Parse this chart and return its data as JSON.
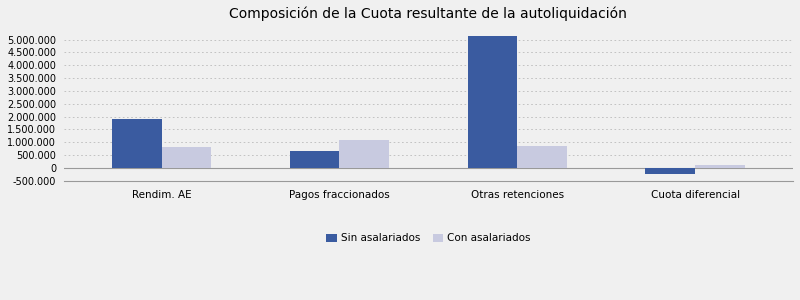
{
  "title": "Composición de la Cuota resultante de la autoliquidación",
  "categories": [
    "Rendim. AE",
    "Pagos fraccionados",
    "Otras retenciones",
    "Cuota diferencial"
  ],
  "sin_asalariados": [
    1900000,
    670000,
    5150000,
    -220000
  ],
  "con_asalariados": [
    800000,
    1080000,
    840000,
    120000
  ],
  "bar_color_sin": "#3A5BA0",
  "bar_color_con": "#C8CAE0",
  "legend_sin": "Sin asalariados",
  "legend_con": "Con asalariados",
  "ylim": [
    -500000,
    5500000
  ],
  "yticks": [
    -500000,
    0,
    500000,
    1000000,
    1500000,
    2000000,
    2500000,
    3000000,
    3500000,
    4000000,
    4500000,
    5000000
  ],
  "background_color": "#f0f0f0",
  "plot_bg_color": "#f0f0f0",
  "grid_color": "#bbbbbb",
  "title_fontsize": 10,
  "bar_width": 0.28
}
